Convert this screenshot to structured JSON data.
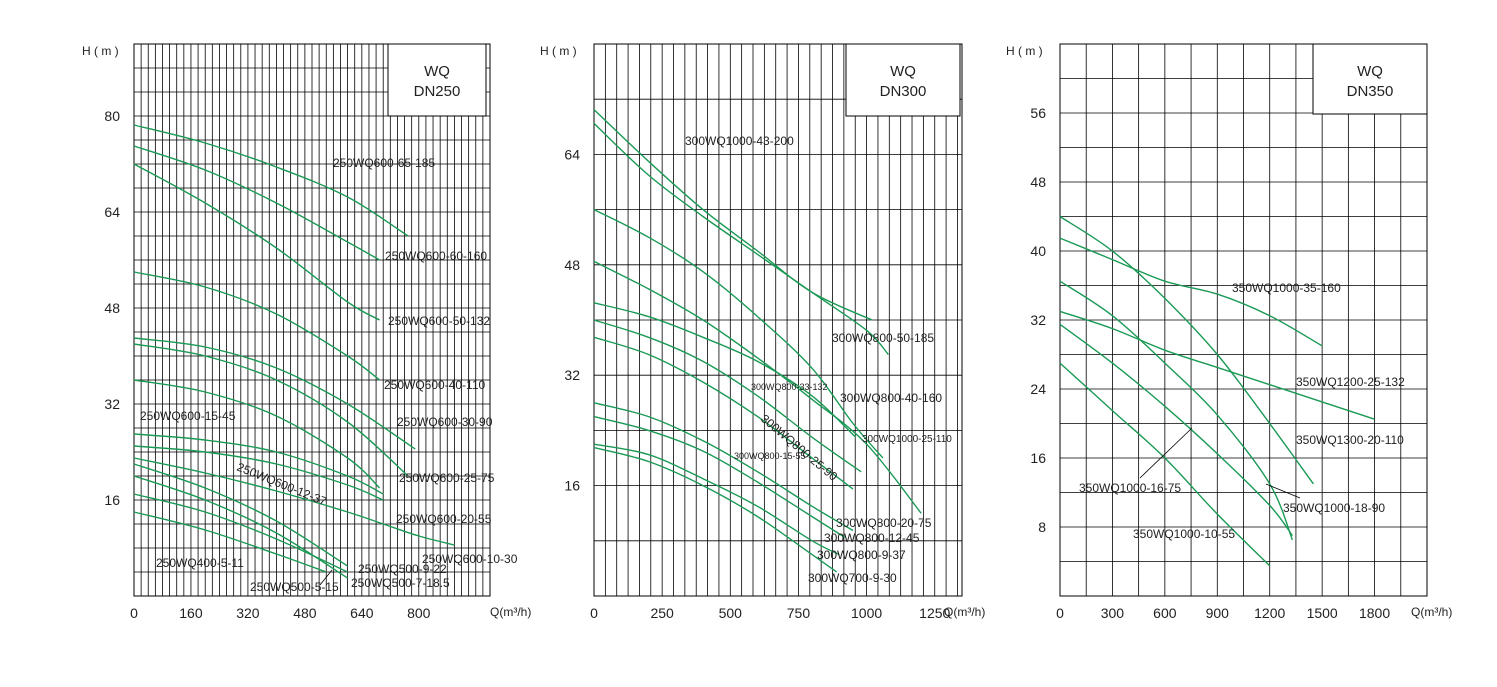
{
  "chart_data": [
    {
      "type": "line",
      "title": "WQ\nDN250",
      "y_axis_label": "H ( m )",
      "x_axis_label": "Q(m³/h)",
      "xlim": [
        0,
        1000
      ],
      "ylim": [
        0,
        92
      ],
      "xticks": [
        "0",
        "160",
        "320",
        "480",
        "640",
        "800"
      ],
      "yticks": [
        "16",
        "32",
        "48",
        "64",
        "80"
      ],
      "curve_color": "#1a9a55",
      "grid": "on",
      "series": [
        {
          "name": "250WQ600-65-185",
          "x": [
            0,
            200,
            400,
            600,
            770
          ],
          "y": [
            78.5,
            75.5,
            71.5,
            66.5,
            60
          ]
        },
        {
          "name": "250WQ600-60-160",
          "x": [
            0,
            200,
            400,
            600,
            690
          ],
          "y": [
            75,
            71,
            65.5,
            59,
            56
          ]
        },
        {
          "name": "250WQ600-50-132",
          "x": [
            0,
            200,
            400,
            600,
            690
          ],
          "y": [
            72,
            65.5,
            58,
            49,
            46
          ]
        },
        {
          "name": "250WQ600-40-110",
          "x": [
            0,
            200,
            400,
            600,
            690
          ],
          "y": [
            54,
            51.5,
            47,
            40,
            36
          ]
        },
        {
          "name": "250WQ600-30-90",
          "x": [
            0,
            200,
            400,
            600,
            790
          ],
          "y": [
            43,
            41.5,
            38,
            32,
            24.5
          ]
        },
        {
          "name": "250WQ600-25-75",
          "x": [
            0,
            200,
            400,
            600,
            770
          ],
          "y": [
            42,
            40,
            36,
            29,
            20
          ]
        },
        {
          "name": "250WQ600-20-55",
          "x": [
            0,
            200,
            400,
            600,
            690
          ],
          "y": [
            36,
            34,
            30,
            23,
            18
          ]
        },
        {
          "name": "250WQ600-15-45",
          "x": [
            0,
            200,
            400,
            600,
            700
          ],
          "y": [
            27,
            26,
            24,
            20,
            17
          ]
        },
        {
          "name": "250WQ600-12-37",
          "x": [
            0,
            200,
            400,
            600,
            700
          ],
          "y": [
            25,
            24,
            22,
            18.5,
            16
          ]
        },
        {
          "name": "250WQ600-10-30",
          "x": [
            0,
            200,
            400,
            600,
            700,
            800,
            900
          ],
          "y": [
            23,
            20.5,
            17.5,
            14,
            12,
            10,
            8.5
          ]
        },
        {
          "name": "250WQ500-9-22",
          "x": [
            0,
            200,
            400,
            600
          ],
          "y": [
            22,
            18,
            12.5,
            5
          ]
        },
        {
          "name": "250WQ500-7-18.5",
          "x": [
            0,
            200,
            400,
            600
          ],
          "y": [
            20,
            16,
            10.5,
            3
          ]
        },
        {
          "name": "250WQ500-5-15",
          "x": [
            0,
            200,
            400,
            600
          ],
          "y": [
            17,
            14,
            9.5,
            4
          ]
        },
        {
          "name": "250WQ400-5-11",
          "x": [
            0,
            200,
            400,
            540
          ],
          "y": [
            14,
            11,
            7,
            4
          ]
        }
      ],
      "label_names": [
        "250WQ600-65-185",
        "250WQ600-60-160",
        "250WQ600-50-132",
        "250WQ600-40-110",
        "250WQ600-30-90",
        "250WQ600-25-75",
        "250WQ600-20-55",
        "250WQ600-15-45",
        "250WQ600-12-37",
        "250WQ600-10-30",
        "250WQ500-9-22",
        "250WQ500-7-18.5",
        "250WQ500-5-15",
        "250WQ400-5-11"
      ]
    },
    {
      "type": "line",
      "title": "WQ\nDN300",
      "y_axis_label": "H ( m )",
      "x_axis_label": "Q(m³/h)",
      "xlim": [
        0,
        1350
      ],
      "ylim": [
        0,
        80
      ],
      "xticks": [
        "0",
        "250",
        "500",
        "750",
        "1000",
        "1250"
      ],
      "yticks": [
        "16",
        "32",
        "48",
        "64"
      ],
      "curve_color": "#1a9a55",
      "grid": "on",
      "series": [
        {
          "name": "300WQ1000-43-200",
          "x": [
            0,
            200,
            400,
            600,
            800,
            1020
          ],
          "y": [
            70.5,
            63,
            56,
            50,
            44,
            40
          ]
        },
        {
          "name": "300WQ800-50-185",
          "x": [
            0,
            200,
            400,
            600,
            800,
            1000,
            1080
          ],
          "y": [
            68.5,
            61,
            55,
            49.5,
            44,
            38.5,
            35
          ]
        },
        {
          "name": "300WQ800-40-160",
          "x": [
            0,
            200,
            400,
            600,
            800,
            950,
            1060
          ],
          "y": [
            56,
            52,
            47,
            40.5,
            33,
            25,
            20
          ]
        },
        {
          "name": "300WQ1000-25-110",
          "x": [
            0,
            200,
            400,
            600,
            800,
            1000,
            1200
          ],
          "y": [
            48.5,
            44.5,
            40,
            34.5,
            28.5,
            22,
            12
          ]
        },
        {
          "name": "300WQ800-33-132",
          "x": [
            0,
            200,
            400,
            600,
            800,
            960
          ],
          "y": [
            42.5,
            40.5,
            37.5,
            34,
            29,
            23
          ]
        },
        {
          "name": "300WQ800-25-90",
          "x": [
            0,
            200,
            400,
            600,
            800,
            980
          ],
          "y": [
            40,
            37.5,
            34,
            29,
            23,
            18
          ]
        },
        {
          "name": "300WQ800-20-75",
          "x": [
            0,
            200,
            400,
            600,
            800,
            950
          ],
          "y": [
            37.5,
            35,
            31,
            26,
            20,
            15.5
          ]
        },
        {
          "name": "300WQ800-15-55",
          "x": [
            0,
            200,
            400,
            600,
            800,
            950
          ],
          "y": [
            28,
            26,
            22.5,
            18,
            13,
            9.5
          ]
        },
        {
          "name": "300WQ800-12-45",
          "x": [
            0,
            200,
            400,
            600,
            800,
            920
          ],
          "y": [
            26,
            24,
            21,
            16.5,
            11.5,
            8.5
          ]
        },
        {
          "name": "300WQ800-9-37",
          "x": [
            0,
            200,
            400,
            600,
            800,
            900
          ],
          "y": [
            22,
            20.5,
            17,
            13,
            8,
            6
          ]
        },
        {
          "name": "300WQ700-9-30",
          "x": [
            0,
            200,
            400,
            600,
            800,
            890
          ],
          "y": [
            21.5,
            19.5,
            16,
            11.5,
            6,
            3.5
          ]
        }
      ],
      "label_names": [
        "300WQ1000-43-200",
        "300WQ800-50-185",
        "300WQ800-40-160",
        "300WQ1000-25-110",
        "300WQ800-33-132",
        "300WQ800-25-90",
        "300WQ800-15-55",
        "300WQ800-20-75",
        "300WQ800-12-45",
        "300WQ800-9-37",
        "300WQ700-9-30"
      ]
    },
    {
      "type": "line",
      "title": "WQ\nDN350",
      "y_axis_label": "H ( m )",
      "x_axis_label": "Q(m³/h)",
      "xlim": [
        0,
        2100
      ],
      "ylim": [
        0,
        64
      ],
      "xticks": [
        "0",
        "300",
        "600",
        "900",
        "1200",
        "1500",
        "1800"
      ],
      "yticks": [
        "8",
        "16",
        "24",
        "32",
        "40",
        "48",
        "56"
      ],
      "curve_color": "#1a9a55",
      "grid": "on",
      "series": [
        {
          "name": "350WQ1000-35-160",
          "x": [
            0,
            300,
            600,
            900,
            1200,
            1500
          ],
          "y": [
            41.5,
            39,
            36.5,
            35,
            32.5,
            29
          ]
        },
        {
          "name": "350WQ1200-25-132",
          "x": [
            0,
            300,
            600,
            900,
            1200,
            1500,
            1800
          ],
          "y": [
            33,
            31,
            28.5,
            26.5,
            24.5,
            22.5,
            20.5
          ]
        },
        {
          "name": "350WQ1300-20-110",
          "x": [
            0,
            300,
            600,
            900,
            1200,
            1450
          ],
          "y": [
            44,
            40,
            34.5,
            28,
            20,
            13
          ]
        },
        {
          "name": "350WQ1000-18-90",
          "x": [
            0,
            300,
            600,
            900,
            1200,
            1330
          ],
          "y": [
            36.5,
            32.5,
            27,
            21,
            13,
            6.5
          ]
        },
        {
          "name": "350WQ1000-16-75",
          "x": [
            0,
            300,
            600,
            900,
            1200,
            1330
          ],
          "y": [
            31.5,
            27,
            22,
            16.5,
            10.5,
            7
          ]
        },
        {
          "name": "350WQ1000-10-55",
          "x": [
            0,
            300,
            600,
            900,
            1200
          ],
          "y": [
            27,
            21.5,
            16,
            9.5,
            3.5
          ]
        }
      ],
      "label_names": [
        "350WQ1000-35-160",
        "350WQ1200-25-132",
        "350WQ1300-20-110",
        "350WQ1000-18-90",
        "350WQ1000-16-75",
        "350WQ1000-10-55"
      ]
    }
  ]
}
